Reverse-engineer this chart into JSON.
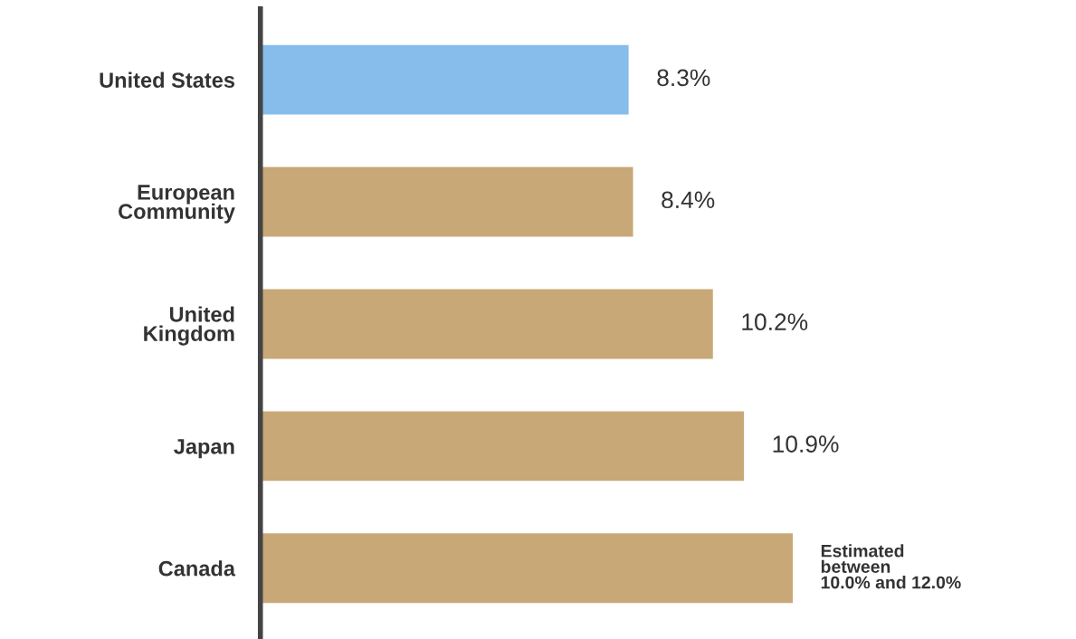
{
  "chart_data": {
    "type": "bar",
    "orientation": "horizontal",
    "categories": [
      "United States",
      "European\nCommunity",
      "United\nKingdom",
      "Japan",
      "Canada"
    ],
    "values": [
      8.3,
      8.4,
      10.2,
      10.9,
      12.0
    ],
    "colors": [
      "#86bdea",
      "#c8a877",
      "#c8a877",
      "#c8a877",
      "#c8a877"
    ],
    "value_labels": [
      "8.3%",
      "8.4%",
      "10.2%",
      "10.9%",
      "Estimated\nbetween\n10.0% and 12.0%"
    ],
    "grid": false,
    "legend": false
  }
}
